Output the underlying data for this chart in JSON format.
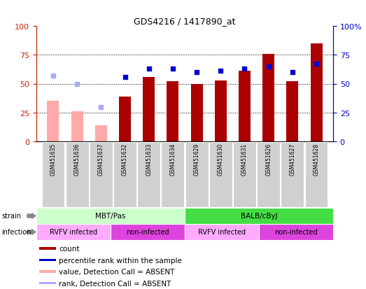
{
  "title": "GDS4216 / 1417890_at",
  "samples": [
    "GSM451635",
    "GSM451636",
    "GSM451637",
    "GSM451632",
    "GSM451633",
    "GSM451634",
    "GSM451629",
    "GSM451630",
    "GSM451631",
    "GSM451626",
    "GSM451627",
    "GSM451628"
  ],
  "bar_values": [
    35,
    26,
    14,
    39,
    56,
    52,
    50,
    53,
    61,
    76,
    52,
    85
  ],
  "bar_colors": [
    "#ffaaaa",
    "#ffaaaa",
    "#ffaaaa",
    "#aa0000",
    "#aa0000",
    "#aa0000",
    "#aa0000",
    "#aa0000",
    "#aa0000",
    "#aa0000",
    "#aa0000",
    "#aa0000"
  ],
  "dot_values": [
    57,
    50,
    30,
    56,
    63,
    63,
    60,
    61,
    63,
    65,
    60,
    67
  ],
  "dot_colors": [
    "#aaaaff",
    "#aaaaff",
    "#aaaaff",
    "#0000cc",
    "#0000cc",
    "#0000cc",
    "#0000cc",
    "#0000cc",
    "#0000cc",
    "#0000cc",
    "#0000cc",
    "#0000cc"
  ],
  "ylim": [
    0,
    100
  ],
  "yticks": [
    0,
    25,
    50,
    75,
    100
  ],
  "grid_values": [
    25,
    50,
    75
  ],
  "strain_groups": [
    {
      "label": "MBT/Pas",
      "start": 0,
      "end": 6,
      "color": "#ccffcc"
    },
    {
      "label": "BALB/cByJ",
      "start": 6,
      "end": 12,
      "color": "#44dd44"
    }
  ],
  "infection_groups": [
    {
      "label": "RVFV infected",
      "start": 0,
      "end": 3,
      "color": "#ffaaff"
    },
    {
      "label": "non-infected",
      "start": 3,
      "end": 6,
      "color": "#dd44dd"
    },
    {
      "label": "RVFV infected",
      "start": 6,
      "end": 9,
      "color": "#ffaaff"
    },
    {
      "label": "non-infected",
      "start": 9,
      "end": 12,
      "color": "#dd44dd"
    }
  ],
  "legend_items": [
    {
      "label": "count",
      "color": "#aa0000"
    },
    {
      "label": "percentile rank within the sample",
      "color": "#0000cc"
    },
    {
      "label": "value, Detection Call = ABSENT",
      "color": "#ffaaaa"
    },
    {
      "label": "rank, Detection Call = ABSENT",
      "color": "#aaaaff"
    }
  ],
  "left_axis_color": "#cc2200",
  "right_axis_color": "#0000cc",
  "bg_color": "#ffffff",
  "bar_width": 0.5
}
